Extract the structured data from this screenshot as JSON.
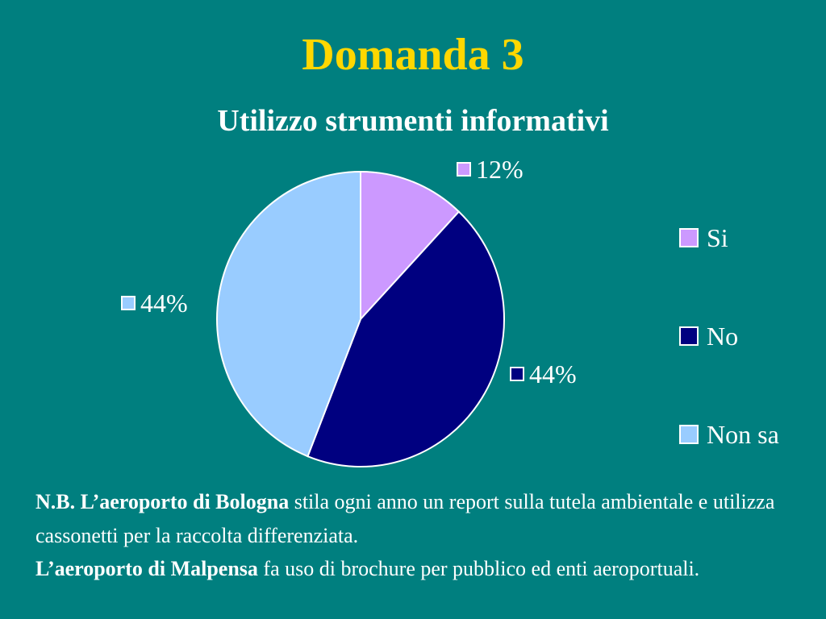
{
  "slide": {
    "title": "Domanda 3"
  },
  "chart_data": {
    "type": "pie",
    "title": "Utilizzo strumenti informativi",
    "categories": [
      "Si",
      "No",
      "Non sa"
    ],
    "values": [
      12,
      44,
      44
    ],
    "labels": [
      "12%",
      "44%",
      "44%"
    ],
    "colors": [
      "#CC99FF",
      "#000080",
      "#99CCFF"
    ],
    "legend_position": "right"
  },
  "note": {
    "line1_bold": "N.B. L’aeroporto di Bologna",
    "line1_rest": " stila ogni anno un report sulla tutela ambientale e utilizza cassonetti per la raccolta differenziata.",
    "line2_bold": "L’aeroporto di Malpensa",
    "line2_rest": " fa uso di brochure per pubblico ed enti aeroportuali."
  }
}
